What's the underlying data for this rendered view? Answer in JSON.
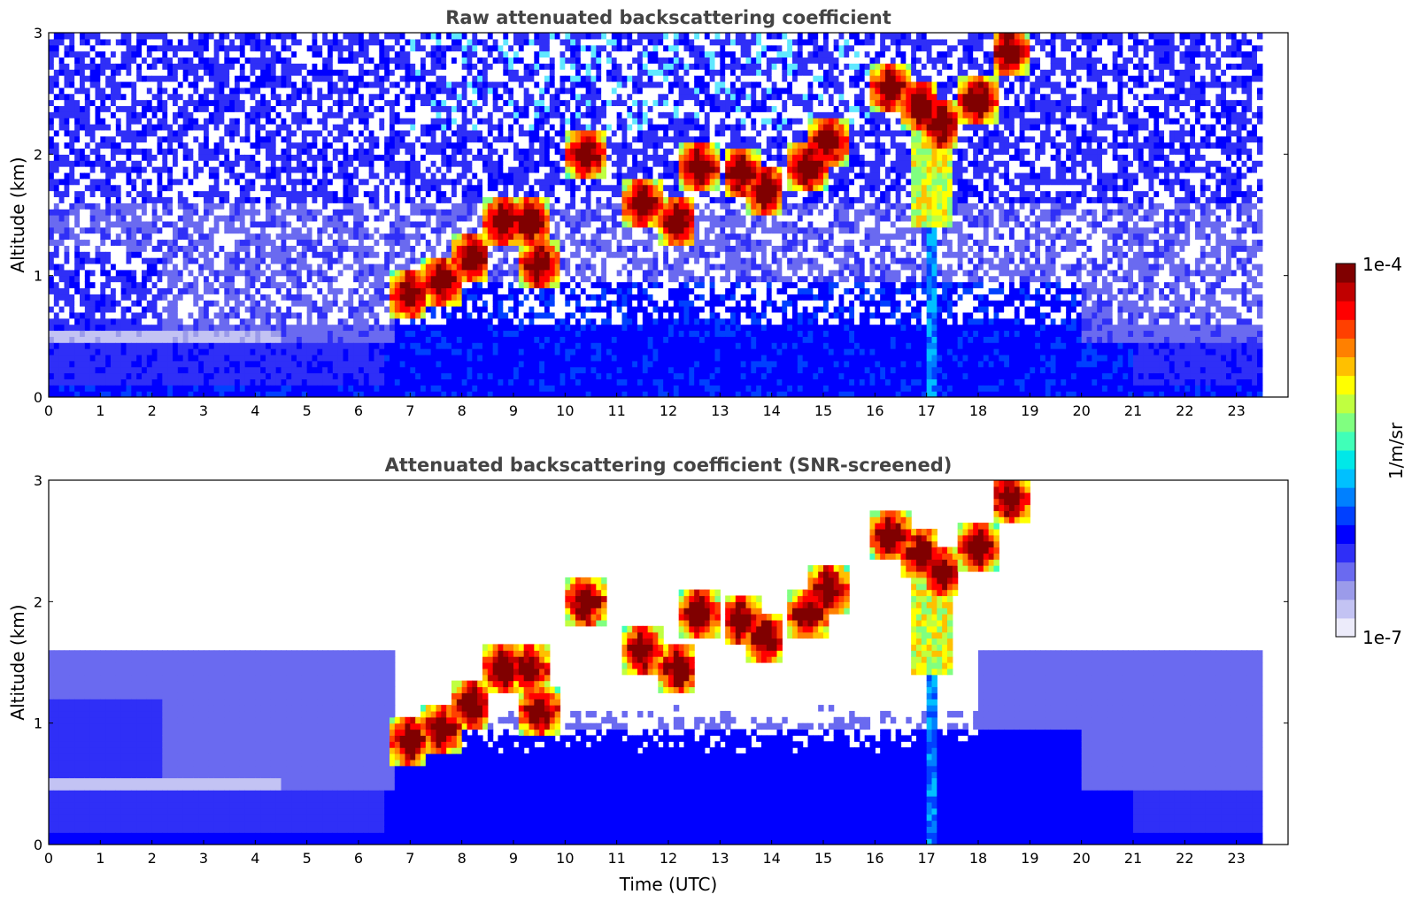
{
  "figure": {
    "xlabel": "Time (UTC)",
    "ylabel": "Altitude (km)"
  },
  "chart_data": [
    {
      "type": "heatmap",
      "title": "Raw attenuated backscattering coefficient",
      "xlabel": "",
      "ylabel": "Altitude (km)",
      "xlim": [
        0,
        24
      ],
      "ylim": [
        0,
        3
      ],
      "x_data_extent": [
        0,
        23.5
      ],
      "xticks": [
        "0",
        "1",
        "2",
        "3",
        "4",
        "5",
        "6",
        "7",
        "8",
        "9",
        "10",
        "11",
        "12",
        "13",
        "14",
        "15",
        "16",
        "17",
        "18",
        "19",
        "20",
        "21",
        "22",
        "23"
      ],
      "yticks": [
        "0",
        "1",
        "2",
        "3"
      ],
      "screened": false,
      "features": {
        "boundary_layer_top_km": 0.55,
        "cloud_layers": [
          {
            "time": 7.0,
            "alt_km": 0.85
          },
          {
            "time": 7.6,
            "alt_km": 0.95
          },
          {
            "time": 8.2,
            "alt_km": 1.15
          },
          {
            "time": 8.8,
            "alt_km": 1.45
          },
          {
            "time": 9.3,
            "alt_km": 1.45
          },
          {
            "time": 9.5,
            "alt_km": 1.1
          },
          {
            "time": 10.4,
            "alt_km": 2.0
          },
          {
            "time": 11.5,
            "alt_km": 1.6
          },
          {
            "time": 12.2,
            "alt_km": 1.45
          },
          {
            "time": 12.6,
            "alt_km": 1.9
          },
          {
            "time": 13.4,
            "alt_km": 1.85
          },
          {
            "time": 13.9,
            "alt_km": 1.7
          },
          {
            "time": 14.7,
            "alt_km": 1.9
          },
          {
            "time": 15.1,
            "alt_km": 2.1
          },
          {
            "time": 16.3,
            "alt_km": 2.55
          },
          {
            "time": 16.9,
            "alt_km": 2.4
          },
          {
            "time": 17.3,
            "alt_km": 2.25
          },
          {
            "time": 18.0,
            "alt_km": 2.45
          },
          {
            "time": 18.6,
            "alt_km": 2.85
          }
        ],
        "precipitation_shaft": {
          "time": 17.1,
          "from_km": 2.2,
          "to_km": 0.0
        }
      }
    },
    {
      "type": "heatmap",
      "title": "Attenuated backscattering coefficient (SNR-screened)",
      "xlabel": "Time (UTC)",
      "ylabel": "Altitude (km)",
      "xlim": [
        0,
        24
      ],
      "ylim": [
        0,
        3
      ],
      "x_data_extent": [
        0,
        23.5
      ],
      "xticks": [
        "0",
        "1",
        "2",
        "3",
        "4",
        "5",
        "6",
        "7",
        "8",
        "9",
        "10",
        "11",
        "12",
        "13",
        "14",
        "15",
        "16",
        "17",
        "18",
        "19",
        "20",
        "21",
        "22",
        "23"
      ],
      "yticks": [
        "0",
        "1",
        "2",
        "3"
      ],
      "screened": true
    }
  ],
  "colorbar": {
    "label": "1/m/sr",
    "max_label": "1e-4",
    "min_label": "1e-7",
    "scale": "log",
    "range": [
      1e-07,
      0.0001
    ],
    "colormap": "jet (white to blue at low end)",
    "colors": [
      "#ecebfa",
      "#c3c3f3",
      "#9b9bea",
      "#6a6af0",
      "#2f2ff7",
      "#0000ff",
      "#0040ff",
      "#0080ff",
      "#00c0ff",
      "#00e8e8",
      "#40ffb8",
      "#80ff80",
      "#c0ff40",
      "#ffff00",
      "#ffc000",
      "#ff8000",
      "#ff4000",
      "#ff0000",
      "#c00000",
      "#800000"
    ]
  }
}
